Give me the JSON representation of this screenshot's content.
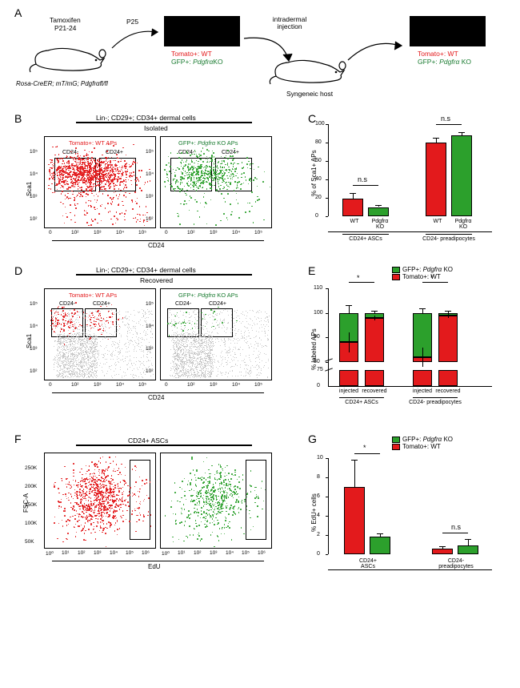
{
  "panelA": {
    "label": "A",
    "mouse1_top": "Tamoxifen",
    "mouse1_top2": "P21-24",
    "mouse1_genotype": "Rosa-CreER; mT/mG; Pdgfrαfl/fl",
    "arrow1": "P25",
    "box1_red": "Tomato+: WT",
    "box1_green": "GFP+: PdgfrαKO",
    "mid_label": "intradermal\ninjection",
    "mouse2_label": "Syngeneic host",
    "box2_red": "Tomato+: WT",
    "box2_green": "GFP+: Pdgfrα KO"
  },
  "panelB": {
    "label": "B",
    "title": "Lin-; CD29+; CD34+ dermal cells",
    "subtitle": "Isolated",
    "left_title": "Tomato+: WT APs",
    "right_title": "GFP+: Pdgfrα KO APs",
    "gate_cd24neg": "CD24-",
    "gate_cd24pos": "CD24+",
    "xlabel": "CD24",
    "ylabel": "Sca1",
    "xticks": [
      "0",
      "10²",
      "10³",
      "10⁴",
      "10⁵"
    ],
    "yticks": [
      "10²",
      "10³",
      "10⁴",
      "10⁵"
    ],
    "colors": {
      "red": "#e31a1c",
      "green": "#2ca02c"
    }
  },
  "panelC": {
    "label": "C",
    "ylabel": "% of Sca1+ APs",
    "ymax": 100,
    "ytick_step": 20,
    "yticks": [
      "0",
      "20",
      "40",
      "60",
      "80",
      "100"
    ],
    "groups": [
      {
        "label": "CD24+ ASCs",
        "bars": [
          {
            "label": "WT",
            "value": 19,
            "err": 6,
            "color": "#e31a1c"
          },
          {
            "label": "Pdgfrα\nKO",
            "value": 10,
            "err": 2,
            "color": "#2ca02c"
          }
        ],
        "sig": "n.s"
      },
      {
        "label": "CD24- preadipocytes",
        "bars": [
          {
            "label": "WT",
            "value": 80,
            "err": 5,
            "color": "#e31a1c"
          },
          {
            "label": "Pdgfrα\nKO",
            "value": 88,
            "err": 3,
            "color": "#2ca02c"
          }
        ],
        "sig": "n.s"
      }
    ]
  },
  "panelD": {
    "label": "D",
    "title": "Lin-; CD29+; CD34+ dermal cells",
    "subtitle": "Recovered",
    "left_title": "Tomato+: WT APs",
    "right_title": "GFP+: Pdgfrα KO APs",
    "gate_cd24neg": "CD24-",
    "gate_cd24pos": "CD24+",
    "xlabel": "CD24",
    "ylabel": "Sca1",
    "colors": {
      "red": "#e31a1c",
      "green": "#2ca02c",
      "grey": "#b8b8b8"
    }
  },
  "panelE": {
    "label": "E",
    "ylabel": "% labeled APs",
    "yticks_upper": [
      "80",
      "90",
      "100",
      "110"
    ],
    "yticks_lower": [
      "0",
      "75"
    ],
    "legend": [
      {
        "label": "GFP+: Pdgfrα KO",
        "color": "#2ca02c"
      },
      {
        "label": "Tomato+: WT",
        "color": "#e31a1c"
      }
    ],
    "groups": [
      {
        "label": "CD24+ ASCs",
        "bars": [
          {
            "xlabel": "injected",
            "wt": 88,
            "wt_err": 4,
            "ko": 100,
            "ko_err": 3
          },
          {
            "xlabel": "recovered",
            "wt": 98,
            "wt_err": 1,
            "ko": 100,
            "ko_err": 1
          }
        ],
        "sig": "*"
      },
      {
        "label": "CD24- preadipocytes",
        "bars": [
          {
            "xlabel": "injected",
            "wt": 82,
            "wt_err": 4,
            "ko": 100,
            "ko_err": 2
          },
          {
            "xlabel": "recovered",
            "wt": 99,
            "wt_err": 1,
            "ko": 100,
            "ko_err": 1
          }
        ],
        "sig": "*"
      }
    ],
    "colors": {
      "red": "#e31a1c",
      "green": "#2ca02c"
    }
  },
  "panelF": {
    "label": "F",
    "title": "CD24+ ASCs",
    "xlabel": "EdU",
    "ylabel": "FSC-A",
    "xticks": [
      "10⁰",
      "10¹",
      "10²",
      "10³",
      "10⁴",
      "10⁵",
      "10⁶"
    ],
    "yticks": [
      "50K",
      "100K",
      "150K",
      "200K",
      "250K"
    ],
    "colors": {
      "red": "#e31a1c",
      "green": "#2ca02c"
    }
  },
  "panelG": {
    "label": "G",
    "ylabel": "% EdU+ cells",
    "ymax": 10,
    "ytick_step": 2,
    "yticks": [
      "0",
      "2",
      "4",
      "6",
      "8",
      "10"
    ],
    "legend": [
      {
        "label": "GFP+: Pdgfrα KO",
        "color": "#2ca02c"
      },
      {
        "label": "Tomato+: WT",
        "color": "#e31a1c"
      }
    ],
    "groups": [
      {
        "label": "CD24+\nASCs",
        "bars": [
          {
            "value": 7.0,
            "err": 2.8,
            "color": "#e31a1c"
          },
          {
            "value": 1.8,
            "err": 0.4,
            "color": "#2ca02c"
          }
        ],
        "sig": "*"
      },
      {
        "label": "CD24-\npreadipocytes",
        "bars": [
          {
            "value": 0.6,
            "err": 0.2,
            "color": "#e31a1c"
          },
          {
            "value": 0.9,
            "err": 0.7,
            "color": "#2ca02c"
          }
        ],
        "sig": "n.s"
      }
    ]
  }
}
